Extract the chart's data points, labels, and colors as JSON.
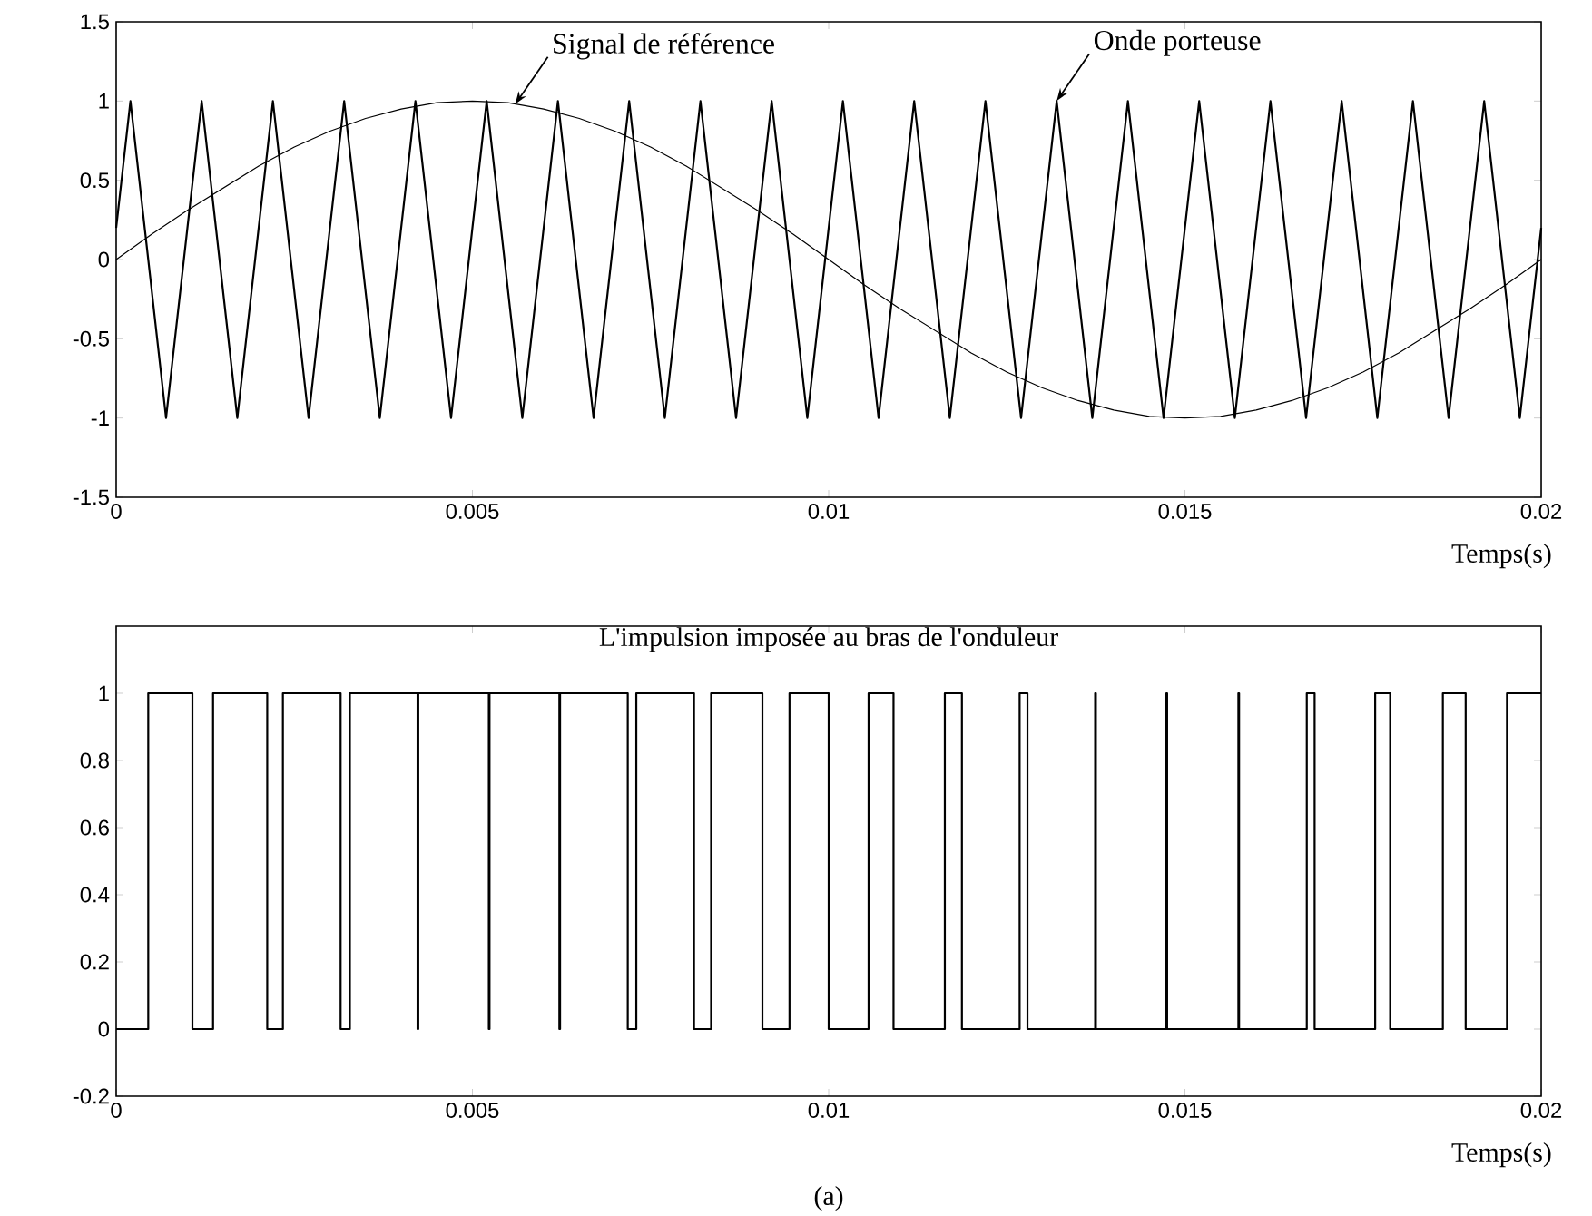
{
  "chart_data": [
    {
      "type": "line",
      "xlabel": "Temps(s)",
      "xlim": [
        0,
        0.02
      ],
      "ylim": [
        -1.5,
        1.5
      ],
      "xticks": [
        0,
        0.005,
        0.01,
        0.015,
        0.02
      ],
      "yticks": [
        -1.5,
        -1,
        -0.5,
        0,
        0.5,
        1,
        1.5
      ],
      "series": [
        {
          "color": "#000000",
          "x": [
            0,
            0.0005,
            0.001,
            0.0015,
            0.002,
            0.0025,
            0.003,
            0.0035,
            0.004,
            0.0045,
            0.005,
            0.0055,
            0.006,
            0.0065,
            0.007,
            0.0075,
            0.008,
            0.0085,
            0.009,
            0.0095,
            0.01,
            0.0105,
            0.011,
            0.0115,
            0.012,
            0.0125,
            0.013,
            0.0135,
            0.014,
            0.0145,
            0.015,
            0.0155,
            0.016,
            0.0165,
            0.017,
            0.0175,
            0.018,
            0.0185,
            0.019,
            0.0195,
            0.02
          ],
          "values": [
            0,
            0.16,
            0.31,
            0.45,
            0.59,
            0.71,
            0.81,
            0.89,
            0.95,
            0.99,
            1,
            0.99,
            0.95,
            0.89,
            0.81,
            0.71,
            0.59,
            0.45,
            0.31,
            0.16,
            0,
            -0.16,
            -0.31,
            -0.45,
            -0.59,
            -0.71,
            -0.81,
            -0.89,
            -0.95,
            -0.99,
            -1,
            -0.99,
            -0.95,
            -0.89,
            -0.81,
            -0.71,
            -0.59,
            -0.45,
            -0.31,
            -0.16,
            0
          ]
        },
        {
          "color": "#000000",
          "x": [
            0,
            0.0002,
            0.0007,
            0.0012,
            0.0017,
            0.0022,
            0.0027,
            0.0032,
            0.0037,
            0.0042,
            0.0047,
            0.0052,
            0.0057,
            0.0062,
            0.0067,
            0.0072,
            0.0077,
            0.0082,
            0.0087,
            0.0092,
            0.0097,
            0.0102,
            0.0107,
            0.0112,
            0.0117,
            0.0122,
            0.0127,
            0.0132,
            0.0137,
            0.0142,
            0.0147,
            0.0152,
            0.0157,
            0.0162,
            0.0167,
            0.0172,
            0.0177,
            0.0182,
            0.0187,
            0.0192,
            0.0197,
            0.02
          ],
          "values": [
            0.2,
            1,
            -1,
            1,
            -1,
            1,
            -1,
            1,
            -1,
            1,
            -1,
            1,
            -1,
            1,
            -1,
            1,
            -1,
            1,
            -1,
            1,
            -1,
            1,
            -1,
            1,
            -1,
            1,
            -1,
            1,
            -1,
            1,
            -1,
            1,
            -1,
            1,
            -1,
            1,
            -1,
            1,
            -1,
            1,
            -1,
            0.2
          ]
        }
      ],
      "annotations": [
        {
          "text": "Signal de référence",
          "x": 0.0056,
          "y": 0.98
        },
        {
          "text": "Onde porteuse",
          "x": 0.0132,
          "y": 1
        }
      ]
    },
    {
      "type": "step",
      "title": "L'impulsion imposée au bras de l'onduleur",
      "xlabel": "Temps(s)",
      "xlim": [
        0,
        0.02
      ],
      "ylim": [
        -0.2,
        1.2
      ],
      "xticks": [
        0,
        0.005,
        0.01,
        0.015,
        0.02
      ],
      "yticks": [
        -0.2,
        0,
        0.2,
        0.4,
        0.6,
        0.8,
        1
      ],
      "series": [
        {
          "color": "#000000",
          "x": [
            0,
            0.00045,
            0.00107,
            0.00136,
            0.00212,
            0.00234,
            0.00315,
            0.00328,
            0.00423,
            0.00424,
            0.00523,
            0.00524,
            0.00622,
            0.00623,
            0.00718,
            0.0073,
            0.00811,
            0.00835,
            0.00907,
            0.00945,
            0.01,
            0.01056,
            0.01091,
            0.01163,
            0.01187,
            0.01268,
            0.01279,
            0.01374,
            0.01375,
            0.01474,
            0.01475,
            0.01575,
            0.01576,
            0.01671,
            0.01682,
            0.01767,
            0.01788,
            0.01862,
            0.01894,
            0.01952,
            0.02
          ],
          "values": [
            0,
            1,
            0,
            1,
            0,
            1,
            0,
            1,
            0,
            1,
            0,
            1,
            0,
            1,
            0,
            1,
            0,
            1,
            0,
            1,
            0,
            1,
            0,
            1,
            0,
            1,
            0,
            1,
            0,
            1,
            0,
            1,
            0,
            1,
            0,
            1,
            0,
            1,
            0,
            1,
            1
          ]
        }
      ],
      "annotations": [
        "(a)"
      ]
    }
  ]
}
